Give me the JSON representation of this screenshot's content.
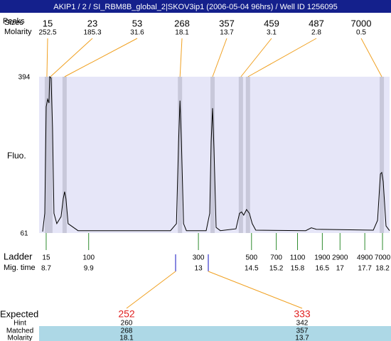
{
  "header": {
    "title": "AKIP1 / 2 / SI_RBM8B_global_2|SKOV3ip1 (2006-05-04 96hrs) / Well ID 1256095"
  },
  "chart_data": {
    "type": "electropherogram",
    "y_label": "Fluo.",
    "ylim": [
      61,
      394
    ],
    "yticks": [
      61,
      394
    ],
    "xlim": [
      8.5,
      18.4
    ],
    "peak_row_labels": [
      "Peaks",
      "Sizes",
      "Molarity"
    ],
    "peaks": [
      {
        "size": 15,
        "molarity": 252.5,
        "mig_time": 8.72
      },
      {
        "size": 23,
        "molarity": 185.3,
        "mig_time": 8.82
      },
      {
        "size": 53,
        "molarity": 31.6,
        "mig_time": 9.22
      },
      {
        "size": 268,
        "molarity": 18.1,
        "mig_time": 12.48
      },
      {
        "size": 357,
        "molarity": 13.7,
        "mig_time": 13.4
      },
      {
        "size": 459,
        "molarity": 3.1,
        "mig_time": 14.2
      },
      {
        "size": 487,
        "molarity": 2.8,
        "mig_time": 14.4
      },
      {
        "size": 7000,
        "molarity": 0.5,
        "mig_time": 18.18
      }
    ],
    "trace": {
      "x": [
        8.6,
        8.66,
        8.7,
        8.74,
        8.78,
        8.8,
        8.84,
        8.88,
        8.92,
        9.0,
        9.12,
        9.18,
        9.22,
        9.26,
        9.32,
        9.6,
        12.21,
        12.38,
        12.44,
        12.48,
        12.52,
        12.58,
        12.66,
        13.22,
        13.32,
        13.36,
        13.4,
        13.44,
        13.5,
        13.62,
        14.06,
        14.16,
        14.22,
        14.28,
        14.36,
        14.44,
        14.52,
        14.62,
        16.03,
        16.19,
        16.33,
        17.94,
        18.06,
        18.14,
        18.18,
        18.22,
        18.3,
        18.4
      ],
      "y": [
        64,
        103,
        330,
        346,
        338,
        394,
        391,
        285,
        103,
        81,
        96,
        134,
        149,
        134,
        81,
        66,
        66,
        81,
        255,
        343,
        255,
        81,
        66,
        66,
        103,
        255,
        327,
        240,
        73,
        66,
        70,
        103,
        106,
        99,
        111,
        103,
        81,
        67,
        66,
        72,
        69,
        67,
        88,
        187,
        190,
        171,
        76,
        66
      ]
    },
    "ladder": {
      "label": "Ladder",
      "time_label": "Mig. time",
      "sizes": [
        15,
        100,
        300,
        500,
        700,
        1100,
        1900,
        2900,
        4900,
        7000
      ],
      "mig_times": [
        8.7,
        9.9,
        13,
        14.5,
        15.2,
        15.8,
        16.5,
        17,
        17.7,
        18.2
      ]
    },
    "expected": {
      "row_labels": [
        "Expected",
        "Hint",
        "Matched",
        "Molarity"
      ],
      "expected": [
        252,
        333
      ],
      "hint": [
        260,
        342
      ],
      "matched": [
        268,
        357
      ],
      "molarity": [
        18.1,
        13.7
      ]
    }
  }
}
